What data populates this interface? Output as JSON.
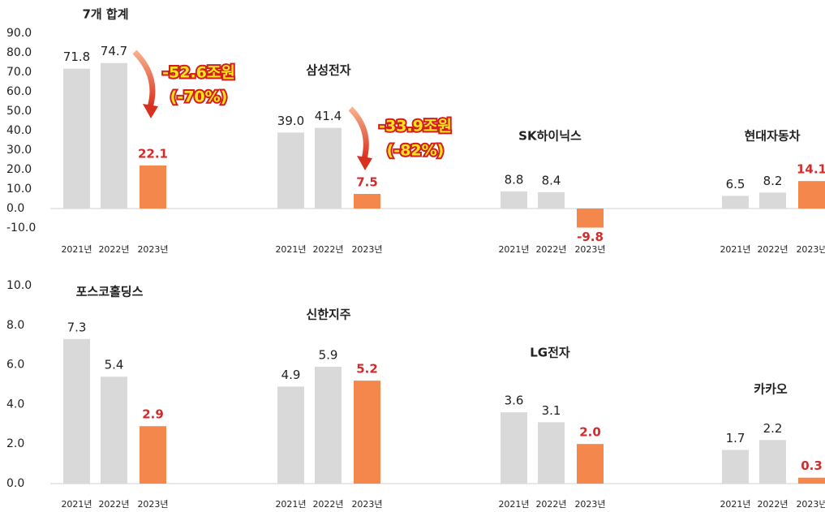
{
  "chart_data": [
    {
      "type": "bar",
      "ylim": [
        -10,
        90
      ],
      "yticks": [
        {
          "value": -10,
          "label": "-10.0"
        },
        {
          "value": 0,
          "label": "0.0"
        },
        {
          "value": 10,
          "label": "10.0"
        },
        {
          "value": 20,
          "label": "20.0"
        },
        {
          "value": 30,
          "label": "30.0"
        },
        {
          "value": 40,
          "label": "40.0"
        },
        {
          "value": 50,
          "label": "50.0"
        },
        {
          "value": 60,
          "label": "60.0"
        },
        {
          "value": 70,
          "label": "70.0"
        },
        {
          "value": 80,
          "label": "80.0"
        },
        {
          "value": 90,
          "label": "90.0"
        }
      ],
      "colors": [
        "#d9d9d9",
        "#d9d9d9",
        "#f4874b"
      ],
      "groups": [
        {
          "name": "7개 합계",
          "categories": [
            "2021년",
            "2022년",
            "2023년"
          ],
          "values": [
            71.8,
            74.7,
            22.1
          ]
        },
        {
          "name": "삼성전자",
          "categories": [
            "2021년",
            "2022년",
            "2023년"
          ],
          "values": [
            39.0,
            41.4,
            7.5
          ],
          "value_labels": [
            "39.0",
            "41.4",
            "7.5"
          ]
        },
        {
          "name": "SK하이닉스",
          "categories": [
            "2021년",
            "2022년",
            "2023년"
          ],
          "values": [
            8.8,
            8.4,
            -9.8
          ]
        },
        {
          "name": "현대자동차",
          "categories": [
            "2021년",
            "2022년",
            "2023년"
          ],
          "values": [
            6.5,
            8.2,
            14.1
          ]
        }
      ],
      "annotations": [
        [
          "-52.6조원",
          "(-70%)"
        ],
        [
          "-33.9조원",
          "(-82%)"
        ]
      ]
    },
    {
      "type": "bar",
      "ylim": [
        0,
        10
      ],
      "yticks": [
        {
          "value": 0,
          "label": "0.0"
        },
        {
          "value": 2,
          "label": "2.0"
        },
        {
          "value": 4,
          "label": "4.0"
        },
        {
          "value": 6,
          "label": "6.0"
        },
        {
          "value": 8,
          "label": "8.0"
        },
        {
          "value": 10,
          "label": "10.0"
        }
      ],
      "colors": [
        "#d9d9d9",
        "#d9d9d9",
        "#f4874b"
      ],
      "groups": [
        {
          "name": "포스코홀딩스",
          "categories": [
            "2021년",
            "2022년",
            "2023년"
          ],
          "values": [
            7.3,
            5.4,
            2.9
          ]
        },
        {
          "name": "신한지주",
          "categories": [
            "2021년",
            "2022년",
            "2023년"
          ],
          "values": [
            4.9,
            5.9,
            5.2
          ]
        },
        {
          "name": "LG전자",
          "categories": [
            "2021년",
            "2022년",
            "2023년"
          ],
          "values": [
            3.6,
            3.1,
            2.0
          ],
          "value_labels": [
            "3.6",
            "3.1",
            "2.0"
          ]
        },
        {
          "name": "카카오",
          "categories": [
            "2021년",
            "2022년",
            "2023년"
          ],
          "values": [
            1.7,
            2.2,
            0.3
          ]
        }
      ]
    }
  ]
}
